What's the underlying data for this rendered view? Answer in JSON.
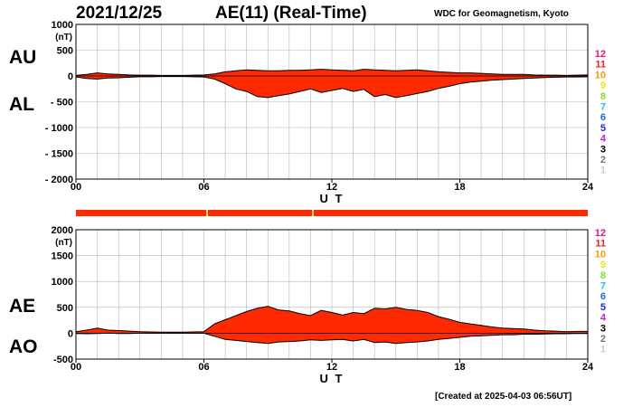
{
  "header": {
    "date": "2021/12/25",
    "title": "AE(11) (Real-Time)",
    "org": "WDC for Geomagnetism, Kyoto"
  },
  "footer": {
    "created": "[Created at 2025-04-03 06:56UT]"
  },
  "colors": {
    "fill": "#ff2a00",
    "outline": "#000000",
    "grid": "#b4b4b4",
    "gap_marker": "#ffd9a0"
  },
  "hour_key": [
    {
      "label": "12",
      "color": "#e8127a"
    },
    {
      "label": "11",
      "color": "#ff1a1a"
    },
    {
      "label": "10",
      "color": "#ff9900"
    },
    {
      "label": "9",
      "color": "#f2e600"
    },
    {
      "label": "8",
      "color": "#7fe619"
    },
    {
      "label": "7",
      "color": "#19c8e6"
    },
    {
      "label": "6",
      "color": "#1a66ff"
    },
    {
      "label": "5",
      "color": "#2a1aff"
    },
    {
      "label": "4",
      "color": "#cc19e6"
    },
    {
      "label": "3",
      "color": "#000000"
    },
    {
      "label": "2",
      "color": "#777777"
    },
    {
      "label": "1",
      "color": "#cccccc"
    }
  ],
  "chart_data": [
    {
      "type": "area",
      "series": [
        {
          "name": "AU"
        },
        {
          "name": "AL"
        }
      ],
      "ylabel": "(nT)",
      "xlabel": "U T",
      "ylim": [
        -2000,
        1000
      ],
      "yticks": [
        1000,
        500,
        0,
        -500,
        -1000,
        -1500,
        -2000
      ],
      "ytick_labels": [
        "1000",
        "500",
        "0",
        "- 500",
        "- 1000",
        "- 1500",
        "- 2000"
      ],
      "xlim": [
        0,
        24
      ],
      "xtick_labels": [
        "00",
        "06",
        "12",
        "18",
        "24"
      ],
      "x": [
        0,
        0.5,
        1,
        1.5,
        2,
        2.5,
        3,
        3.5,
        4,
        4.5,
        5,
        5.5,
        6,
        6.5,
        7,
        7.5,
        8,
        8.5,
        9,
        9.5,
        10,
        10.5,
        11,
        11.5,
        12,
        12.5,
        13,
        13.5,
        14,
        14.5,
        15,
        15.5,
        16,
        16.5,
        17,
        17.5,
        18,
        18.5,
        19,
        19.5,
        20,
        20.5,
        21,
        21.5,
        22,
        22.5,
        23,
        23.5,
        24
      ],
      "au": [
        10,
        30,
        60,
        40,
        30,
        20,
        15,
        15,
        10,
        10,
        10,
        15,
        20,
        40,
        80,
        100,
        120,
        110,
        100,
        100,
        110,
        110,
        120,
        130,
        120,
        110,
        100,
        130,
        120,
        110,
        100,
        110,
        120,
        100,
        80,
        70,
        60,
        60,
        50,
        40,
        30,
        30,
        30,
        20,
        15,
        15,
        10,
        15,
        20
      ],
      "al": [
        -20,
        -50,
        -60,
        -40,
        -35,
        -25,
        -15,
        -15,
        -10,
        -10,
        -10,
        -15,
        -20,
        -60,
        -150,
        -250,
        -300,
        -400,
        -420,
        -380,
        -350,
        -300,
        -250,
        -320,
        -280,
        -240,
        -300,
        -260,
        -400,
        -360,
        -420,
        -380,
        -340,
        -300,
        -240,
        -200,
        -150,
        -120,
        -100,
        -80,
        -70,
        -60,
        -50,
        -40,
        -30,
        -25,
        -20,
        -20,
        -15
      ]
    },
    {
      "type": "area",
      "series": [
        {
          "name": "AE"
        },
        {
          "name": "AO"
        }
      ],
      "ylabel": "(nT)",
      "xlabel": "U T",
      "ylim": [
        -500,
        2000
      ],
      "yticks": [
        2000,
        1500,
        1000,
        500,
        0,
        -500
      ],
      "ytick_labels": [
        "2000",
        "1500",
        "1000",
        "500",
        "0",
        "-500"
      ],
      "xlim": [
        0,
        24
      ],
      "xtick_labels": [
        "00",
        "06",
        "12",
        "18",
        "24"
      ],
      "x": [
        0,
        0.5,
        1,
        1.5,
        2,
        2.5,
        3,
        3.5,
        4,
        4.5,
        5,
        5.5,
        6,
        6.5,
        7,
        7.5,
        8,
        8.5,
        9,
        9.5,
        10,
        10.5,
        11,
        11.5,
        12,
        12.5,
        13,
        13.5,
        14,
        14.5,
        15,
        15.5,
        16,
        16.5,
        17,
        17.5,
        18,
        18.5,
        19,
        19.5,
        20,
        20.5,
        21,
        21.5,
        22,
        22.5,
        23,
        23.5,
        24
      ],
      "ae": [
        30,
        60,
        100,
        60,
        50,
        40,
        30,
        25,
        20,
        20,
        20,
        25,
        30,
        180,
        260,
        340,
        420,
        480,
        520,
        450,
        430,
        380,
        340,
        440,
        400,
        350,
        400,
        380,
        480,
        470,
        500,
        460,
        440,
        400,
        320,
        270,
        210,
        180,
        150,
        120,
        100,
        90,
        80,
        60,
        45,
        40,
        30,
        35,
        35
      ],
      "ao": [
        -5,
        -10,
        -5,
        0,
        -5,
        -5,
        0,
        0,
        0,
        0,
        0,
        0,
        0,
        -60,
        -120,
        -140,
        -160,
        -180,
        -200,
        -170,
        -160,
        -150,
        -130,
        -140,
        -130,
        -120,
        -150,
        -120,
        -180,
        -170,
        -200,
        -180,
        -170,
        -150,
        -120,
        -100,
        -80,
        -60,
        -50,
        -40,
        -30,
        -30,
        -20,
        -20,
        -15,
        -10,
        -10,
        -5,
        -5
      ]
    }
  ]
}
